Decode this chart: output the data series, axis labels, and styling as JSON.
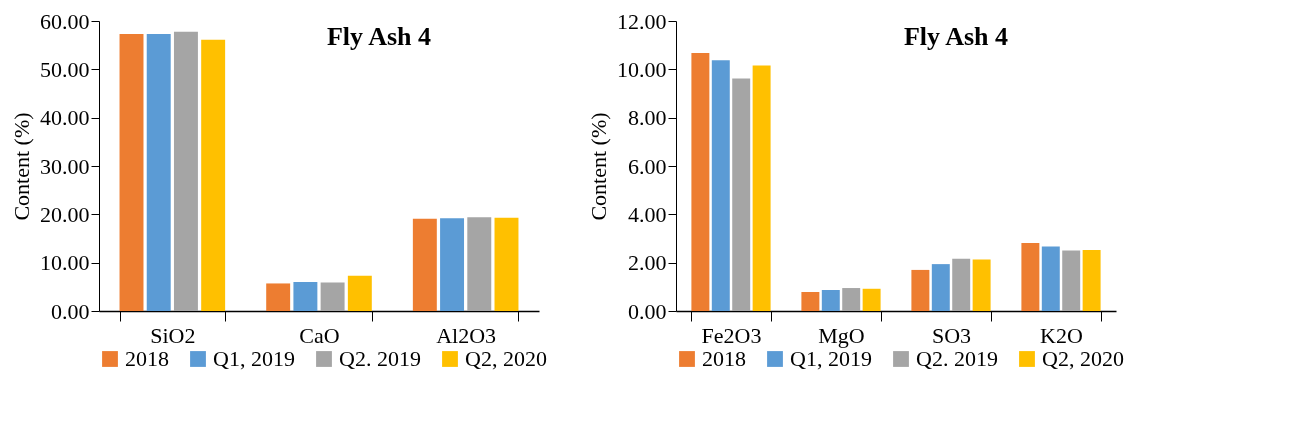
{
  "chart_data": [
    {
      "type": "bar",
      "title": "Fly Ash 4",
      "ylabel": "Content (%)",
      "categories": [
        "SiO2",
        "CaO",
        "Al2O3"
      ],
      "series": [
        {
          "name": "2018",
          "color": "#ed7d31",
          "values": [
            57.3,
            5.7,
            19.1
          ]
        },
        {
          "name": "Q1, 2019",
          "color": "#5b9bd5",
          "values": [
            57.3,
            6.0,
            19.2
          ]
        },
        {
          "name": "Q2. 2019",
          "color": "#a5a5a5",
          "values": [
            57.8,
            5.9,
            19.4
          ]
        },
        {
          "name": "Q2, 2020",
          "color": "#ffc000",
          "values": [
            56.1,
            7.3,
            19.3
          ]
        }
      ],
      "ylim": [
        0,
        60
      ],
      "yticks": [
        {
          "value": 0,
          "label": "0.00"
        },
        {
          "value": 10,
          "label": "10.00"
        },
        {
          "value": 20,
          "label": "20.00"
        },
        {
          "value": 30,
          "label": "30.00"
        },
        {
          "value": 40,
          "label": "40.00"
        },
        {
          "value": 50,
          "label": "50.00"
        },
        {
          "value": 60,
          "label": "60.00"
        }
      ],
      "grid": false,
      "legend": "bottom"
    },
    {
      "type": "bar",
      "title": "Fly Ash 4",
      "ylabel": "Content (%)",
      "categories": [
        "Fe2O3",
        "MgO",
        "SO3",
        "K2O"
      ],
      "series": [
        {
          "name": "2018",
          "color": "#ed7d31",
          "values": [
            10.68,
            0.79,
            1.7,
            2.81
          ]
        },
        {
          "name": "Q1, 2019",
          "color": "#5b9bd5",
          "values": [
            10.38,
            0.87,
            1.94,
            2.67
          ]
        },
        {
          "name": "Q2. 2019",
          "color": "#a5a5a5",
          "values": [
            9.62,
            0.95,
            2.16,
            2.5
          ]
        },
        {
          "name": "Q2, 2020",
          "color": "#ffc000",
          "values": [
            10.16,
            0.92,
            2.13,
            2.52
          ]
        }
      ],
      "ylim": [
        0,
        12
      ],
      "yticks": [
        {
          "value": 0,
          "label": "0.00"
        },
        {
          "value": 2,
          "label": "2.00"
        },
        {
          "value": 4,
          "label": "4.00"
        },
        {
          "value": 6,
          "label": "6.00"
        },
        {
          "value": 8,
          "label": "8.00"
        },
        {
          "value": 10,
          "label": "10.00"
        },
        {
          "value": 12,
          "label": "12.00"
        }
      ],
      "grid": false,
      "legend": "bottom"
    }
  ]
}
